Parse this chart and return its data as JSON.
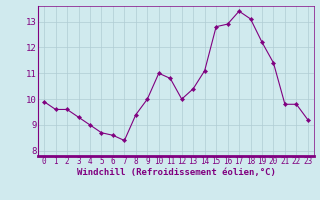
{
  "x": [
    0,
    1,
    2,
    3,
    4,
    5,
    6,
    7,
    8,
    9,
    10,
    11,
    12,
    13,
    14,
    15,
    16,
    17,
    18,
    19,
    20,
    21,
    22,
    23
  ],
  "y": [
    9.9,
    9.6,
    9.6,
    9.3,
    9.0,
    8.7,
    8.6,
    8.4,
    9.4,
    10.0,
    11.0,
    10.8,
    10.0,
    10.4,
    11.1,
    12.8,
    12.9,
    13.4,
    13.1,
    12.2,
    11.4,
    9.8,
    9.8,
    9.2
  ],
  "line_color": "#800080",
  "marker": "D",
  "marker_size": 2.2,
  "bg_color": "#d0eaee",
  "grid_color": "#b0ccd4",
  "xlabel": "Windchill (Refroidissement éolien,°C)",
  "xlabel_color": "#800080",
  "tick_color": "#800080",
  "axis_color": "#800080",
  "ylim": [
    7.8,
    13.6
  ],
  "xlim": [
    -0.5,
    23.5
  ],
  "yticks": [
    8,
    9,
    10,
    11,
    12,
    13
  ],
  "xticks": [
    0,
    1,
    2,
    3,
    4,
    5,
    6,
    7,
    8,
    9,
    10,
    11,
    12,
    13,
    14,
    15,
    16,
    17,
    18,
    19,
    20,
    21,
    22,
    23
  ],
  "tick_fontsize": 5.5,
  "xlabel_fontsize": 6.5,
  "ytick_fontsize": 6.5,
  "separator_color": "#800080"
}
